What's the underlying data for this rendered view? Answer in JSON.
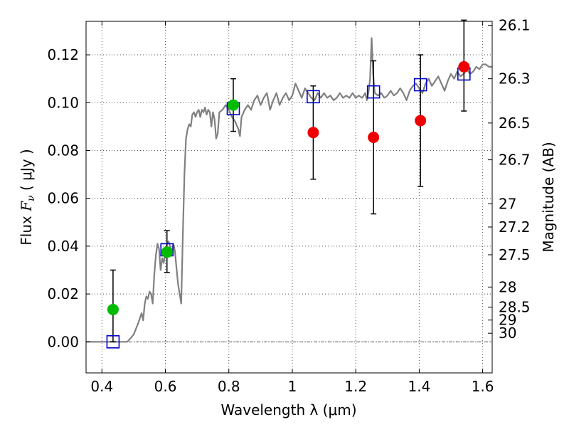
{
  "chart_data": {
    "type": "scatter",
    "xlabel": "Wavelength  λ (μm)",
    "ylabel": "Flux  F_ν  ( μJy )",
    "ylabel_parts": {
      "main": "Flux  ",
      "symbol": "F",
      "subscript": "ν",
      "unit": "  ( μJy )"
    },
    "y2label": "Magnitude (AB)",
    "xlim": [
      0.35,
      1.63
    ],
    "ylim": [
      -0.013,
      0.134
    ],
    "grid": true,
    "x_ticks": [
      0.4,
      0.6,
      0.8,
      1.0,
      1.2,
      1.4,
      1.6
    ],
    "x_tick_labels": [
      "0.4",
      "0.6",
      "0.8",
      "1",
      "1.2",
      "1.4",
      "1.6"
    ],
    "y_ticks": [
      0.0,
      0.02,
      0.04,
      0.06,
      0.08,
      0.1,
      0.12
    ],
    "y_tick_labels": [
      "0.00",
      "0.02",
      "0.04",
      "0.06",
      "0.08",
      "0.10",
      "0.12"
    ],
    "mag_ticks": [
      {
        "label": "26.1",
        "flux": 0.1323
      },
      {
        "label": "26.3",
        "flux": 0.11
      },
      {
        "label": "26.5",
        "flux": 0.0915
      },
      {
        "label": "26.7",
        "flux": 0.0761
      },
      {
        "label": "27",
        "flux": 0.0577
      },
      {
        "label": "27.2",
        "flux": 0.048
      },
      {
        "label": "27.5",
        "flux": 0.0364
      },
      {
        "label": "28",
        "flux": 0.0229
      },
      {
        "label": "28.5",
        "flux": 0.0145
      },
      {
        "label": "29",
        "flux": 0.0091
      },
      {
        "label": "30",
        "flux": 0.0036
      }
    ],
    "colors": {
      "spectrum": "#808080",
      "model": "#0000cc",
      "detection": "#00bb00",
      "faint": "#ee0000",
      "errorbar": "#000000",
      "grid": "#555555",
      "zero_line": "#555555"
    },
    "spectrum": [
      [
        0.35,
        0.0
      ],
      [
        0.48,
        0.0
      ],
      [
        0.5,
        0.003
      ],
      [
        0.515,
        0.008
      ],
      [
        0.525,
        0.012
      ],
      [
        0.53,
        0.009
      ],
      [
        0.535,
        0.016
      ],
      [
        0.54,
        0.019
      ],
      [
        0.545,
        0.018
      ],
      [
        0.55,
        0.021
      ],
      [
        0.555,
        0.02
      ],
      [
        0.56,
        0.016
      ],
      [
        0.565,
        0.028
      ],
      [
        0.57,
        0.036
      ],
      [
        0.575,
        0.041
      ],
      [
        0.58,
        0.039
      ],
      [
        0.585,
        0.03
      ],
      [
        0.59,
        0.035
      ],
      [
        0.595,
        0.033
      ],
      [
        0.6,
        0.038
      ],
      [
        0.605,
        0.041
      ],
      [
        0.61,
        0.042
      ],
      [
        0.615,
        0.04
      ],
      [
        0.62,
        0.037
      ],
      [
        0.625,
        0.041
      ],
      [
        0.63,
        0.038
      ],
      [
        0.635,
        0.031
      ],
      [
        0.64,
        0.024
      ],
      [
        0.645,
        0.02
      ],
      [
        0.65,
        0.016
      ],
      [
        0.655,
        0.045
      ],
      [
        0.66,
        0.07
      ],
      [
        0.665,
        0.085
      ],
      [
        0.67,
        0.089
      ],
      [
        0.675,
        0.091
      ],
      [
        0.68,
        0.09
      ],
      [
        0.685,
        0.095
      ],
      [
        0.69,
        0.096
      ],
      [
        0.695,
        0.094
      ],
      [
        0.7,
        0.096
      ],
      [
        0.705,
        0.097
      ],
      [
        0.71,
        0.094
      ],
      [
        0.715,
        0.097
      ],
      [
        0.72,
        0.096
      ],
      [
        0.725,
        0.098
      ],
      [
        0.73,
        0.095
      ],
      [
        0.735,
        0.097
      ],
      [
        0.74,
        0.096
      ],
      [
        0.745,
        0.09
      ],
      [
        0.75,
        0.096
      ],
      [
        0.755,
        0.093
      ],
      [
        0.76,
        0.085
      ],
      [
        0.765,
        0.087
      ],
      [
        0.77,
        0.096
      ],
      [
        0.78,
        0.097
      ],
      [
        0.79,
        0.099
      ],
      [
        0.8,
        0.097
      ],
      [
        0.81,
        0.094
      ],
      [
        0.82,
        0.092
      ],
      [
        0.83,
        0.089
      ],
      [
        0.835,
        0.086
      ],
      [
        0.84,
        0.094
      ],
      [
        0.85,
        0.097
      ],
      [
        0.86,
        0.099
      ],
      [
        0.87,
        0.097
      ],
      [
        0.88,
        0.101
      ],
      [
        0.89,
        0.103
      ],
      [
        0.9,
        0.099
      ],
      [
        0.91,
        0.102
      ],
      [
        0.92,
        0.104
      ],
      [
        0.93,
        0.097
      ],
      [
        0.94,
        0.101
      ],
      [
        0.95,
        0.104
      ],
      [
        0.96,
        0.099
      ],
      [
        0.97,
        0.102
      ],
      [
        0.98,
        0.104
      ],
      [
        0.99,
        0.101
      ],
      [
        1.0,
        0.103
      ],
      [
        1.01,
        0.108
      ],
      [
        1.02,
        0.105
      ],
      [
        1.03,
        0.102
      ],
      [
        1.04,
        0.106
      ],
      [
        1.05,
        0.104
      ],
      [
        1.06,
        0.102
      ],
      [
        1.07,
        0.101
      ],
      [
        1.08,
        0.104
      ],
      [
        1.09,
        0.102
      ],
      [
        1.1,
        0.104
      ],
      [
        1.11,
        0.102
      ],
      [
        1.12,
        0.103
      ],
      [
        1.13,
        0.101
      ],
      [
        1.14,
        0.102
      ],
      [
        1.15,
        0.104
      ],
      [
        1.16,
        0.102
      ],
      [
        1.17,
        0.103
      ],
      [
        1.18,
        0.102
      ],
      [
        1.19,
        0.104
      ],
      [
        1.2,
        0.102
      ],
      [
        1.21,
        0.103
      ],
      [
        1.22,
        0.102
      ],
      [
        1.23,
        0.104
      ],
      [
        1.235,
        0.101
      ],
      [
        1.24,
        0.104
      ],
      [
        1.245,
        0.11
      ],
      [
        1.25,
        0.127
      ],
      [
        1.255,
        0.112
      ],
      [
        1.26,
        0.104
      ],
      [
        1.27,
        0.103
      ],
      [
        1.28,
        0.104
      ],
      [
        1.29,
        0.102
      ],
      [
        1.3,
        0.103
      ],
      [
        1.31,
        0.105
      ],
      [
        1.32,
        0.103
      ],
      [
        1.33,
        0.104
      ],
      [
        1.34,
        0.106
      ],
      [
        1.35,
        0.104
      ],
      [
        1.36,
        0.101
      ],
      [
        1.37,
        0.105
      ],
      [
        1.38,
        0.107
      ],
      [
        1.39,
        0.108
      ],
      [
        1.4,
        0.106
      ],
      [
        1.41,
        0.104
      ],
      [
        1.42,
        0.108
      ],
      [
        1.43,
        0.11
      ],
      [
        1.44,
        0.107
      ],
      [
        1.45,
        0.109
      ],
      [
        1.46,
        0.111
      ],
      [
        1.47,
        0.108
      ],
      [
        1.48,
        0.105
      ],
      [
        1.49,
        0.109
      ],
      [
        1.5,
        0.112
      ],
      [
        1.51,
        0.11
      ],
      [
        1.52,
        0.113
      ],
      [
        1.53,
        0.111
      ],
      [
        1.54,
        0.112
      ],
      [
        1.55,
        0.114
      ],
      [
        1.56,
        0.112
      ],
      [
        1.57,
        0.113
      ],
      [
        1.58,
        0.115
      ],
      [
        1.59,
        0.114
      ],
      [
        1.6,
        0.116
      ],
      [
        1.61,
        0.116
      ],
      [
        1.62,
        0.115
      ],
      [
        1.63,
        0.115
      ]
    ],
    "series": [
      {
        "marker": "square",
        "points": [
          {
            "x": 0.435,
            "y": 0.0
          },
          {
            "x": 0.605,
            "y": 0.0385
          },
          {
            "x": 0.814,
            "y": 0.0975
          },
          {
            "x": 1.066,
            "y": 0.1025
          },
          {
            "x": 1.256,
            "y": 0.1045
          },
          {
            "x": 1.404,
            "y": 0.1075
          },
          {
            "x": 1.541,
            "y": 0.112
          }
        ]
      },
      {
        "marker": "circle",
        "color_key": "detection",
        "points": [
          {
            "x": 0.435,
            "y": 0.0135,
            "err_low": 0.0,
            "err_high": 0.03
          },
          {
            "x": 0.605,
            "y": 0.0375,
            "err_low": 0.029,
            "err_high": 0.0465
          },
          {
            "x": 0.814,
            "y": 0.099,
            "err_low": 0.088,
            "err_high": 0.11
          }
        ]
      },
      {
        "marker": "circle",
        "color_key": "faint",
        "points": [
          {
            "x": 1.066,
            "y": 0.0875,
            "err_low": 0.068,
            "err_high": 0.107
          },
          {
            "x": 1.256,
            "y": 0.0855,
            "err_low": 0.0535,
            "err_high": 0.1175
          },
          {
            "x": 1.404,
            "y": 0.0925,
            "err_low": 0.065,
            "err_high": 0.12
          },
          {
            "x": 1.541,
            "y": 0.115,
            "err_low": 0.0965,
            "err_high": 0.1345
          }
        ]
      }
    ]
  }
}
